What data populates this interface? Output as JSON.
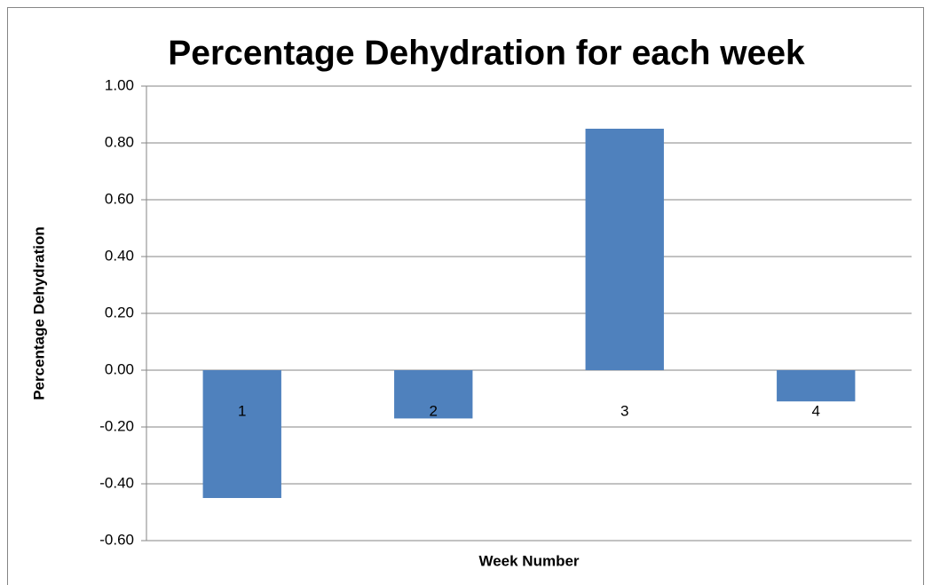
{
  "chart_data": {
    "type": "bar",
    "title": "Percentage Dehydration for each week",
    "x_label": "Week Number",
    "y_label": "Percentage Dehydration",
    "categories": [
      "1",
      "2",
      "3",
      "4"
    ],
    "values": [
      -0.45,
      -0.17,
      0.85,
      -0.11
    ],
    "color": "#4f81bd",
    "ylim": [
      -0.6,
      1.0
    ],
    "yticks": [
      {
        "value": -0.6,
        "label": "-0.60"
      },
      {
        "value": -0.4,
        "label": "-0.40"
      },
      {
        "value": -0.2,
        "label": "-0.20"
      },
      {
        "value": 0,
        "label": "0.00"
      },
      {
        "value": 0.2,
        "label": "0.20"
      },
      {
        "value": 0.4,
        "label": "0.40"
      },
      {
        "value": 0.6,
        "label": "0.60"
      },
      {
        "value": 0.8,
        "label": "0.80"
      },
      {
        "value": 1.0,
        "label": "1.00"
      }
    ],
    "grid": true
  }
}
